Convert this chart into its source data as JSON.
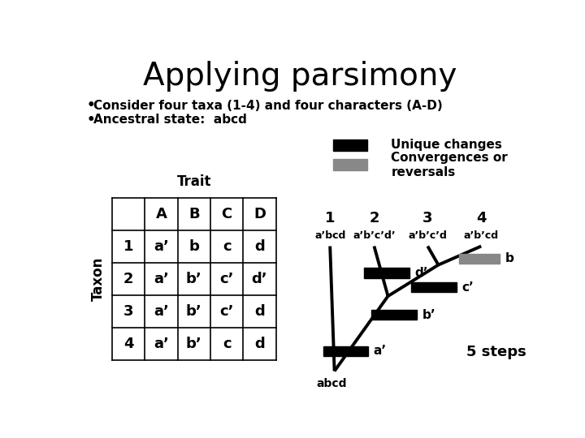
{
  "title": "Applying parsimony",
  "bullet1": "Consider four taxa (1-4) and four characters (A-D)",
  "bullet2": "Ancestral state:  abcd",
  "legend_black": "Unique changes",
  "legend_gray": "Convergences or\nreversals",
  "table_header_cols": [
    "",
    "A",
    "B",
    "C",
    "D"
  ],
  "table_rows": [
    [
      "1",
      "a’",
      "b",
      "c",
      "d"
    ],
    [
      "2",
      "a’",
      "b’",
      "c’",
      "d’"
    ],
    [
      "3",
      "a’",
      "b’",
      "c’",
      "d"
    ],
    [
      "4",
      "a’",
      "b’",
      "c",
      "d"
    ]
  ],
  "trait_label": "Trait",
  "taxon_label": "Taxon",
  "taxa_numbers": [
    "1",
    "2",
    "3",
    "4"
  ],
  "tip_labels": [
    "a’bcd",
    "a’b’c’d’",
    "a’b’c’d",
    "a’b’cd"
  ],
  "root_label": "abcd",
  "steps_label": "5 steps",
  "bg_color": "#ffffff",
  "black": "#000000",
  "gray_color": "#888888"
}
